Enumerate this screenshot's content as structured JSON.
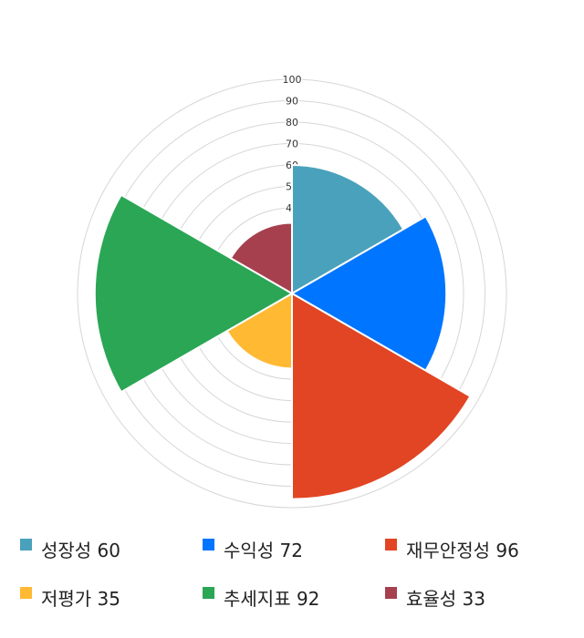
{
  "chart_data": {
    "type": "polar-area",
    "categories": [
      "성장성",
      "수익성",
      "재무안정성",
      "저평가",
      "추세지표",
      "효율성"
    ],
    "values": [
      60,
      72,
      96,
      35,
      92,
      33
    ],
    "colors": [
      "#4aa1bb",
      "#0075ff",
      "#e14523",
      "#ffb933",
      "#2aa655",
      "#a6404f"
    ],
    "rlim": [
      0,
      100
    ],
    "r_ticks": [
      10,
      20,
      30,
      40,
      50,
      60,
      70,
      80,
      90,
      100
    ],
    "grid": true,
    "legend_position": "bottom",
    "legend_labels": [
      "성장성 60",
      "수익성 72",
      "재무안정성 96",
      "저평가 35",
      "추세지표 92",
      "효율성 33"
    ]
  }
}
